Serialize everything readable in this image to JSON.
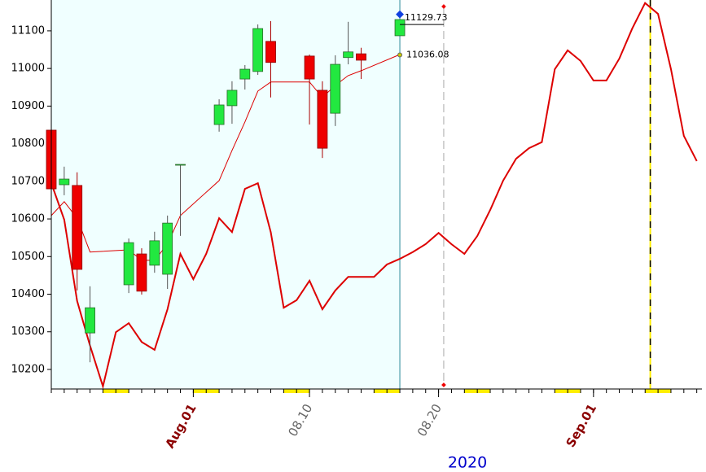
{
  "chart_data": {
    "type": "candlestick",
    "xlim": [
      -11,
      39.4
    ],
    "ylim": [
      10148,
      11182
    ],
    "yticks": [
      {
        "value": 10200,
        "label": "10200"
      },
      {
        "value": 10300,
        "label": "10300"
      },
      {
        "value": 10400,
        "label": "10400"
      },
      {
        "value": 10500,
        "label": "10500"
      },
      {
        "value": 10600,
        "label": "10600"
      },
      {
        "value": 10700,
        "label": "10700"
      },
      {
        "value": 10800,
        "label": "10800"
      },
      {
        "value": 10900,
        "label": "10900"
      },
      {
        "value": 11000,
        "label": "11000"
      },
      {
        "value": 11100,
        "label": "11100"
      }
    ],
    "xticks": [
      {
        "value": 0,
        "label": "Aug.01",
        "color": "#8b0000"
      },
      {
        "value": 9,
        "label": "08.10",
        "color": "#666666"
      },
      {
        "value": 19,
        "label": "08.20",
        "color": "#666666"
      },
      {
        "value": 31,
        "label": "Sep.01",
        "color": "#8b0000"
      }
    ],
    "xlabel": "2020",
    "up_color": "#22e840",
    "down_color": "#ee0000",
    "candles": {
      "x": [
        -11,
        -10,
        -9,
        -8,
        -5,
        -4,
        -3,
        -2,
        -1,
        2,
        3,
        4,
        5,
        6,
        9,
        10,
        11,
        12,
        13,
        16
      ],
      "open": [
        10836,
        10691,
        10689,
        10297,
        10425,
        10507,
        10477,
        10453,
        10745,
        10851,
        10901,
        10972,
        10992,
        11072,
        11033,
        10942,
        10881,
        11029,
        11039,
        11087
      ],
      "high": [
        10847,
        10739,
        10724,
        10421,
        10548,
        10522,
        10566,
        10609,
        10745,
        10918,
        10966,
        11009,
        11117,
        11126,
        11037,
        10966,
        11035,
        11124,
        11055,
        11130
      ],
      "low": [
        10652,
        10663,
        10410,
        10219,
        10403,
        10399,
        10457,
        10414,
        10555,
        10832,
        10853,
        10944,
        10983,
        10923,
        10851,
        10762,
        10847,
        11011,
        10972,
        11087
      ],
      "close": [
        10680,
        10706,
        10466,
        10364,
        10537,
        10408,
        10542,
        10589,
        10745,
        10903,
        10942,
        10998,
        11106,
        11016,
        10972,
        10788,
        11011,
        11044,
        11022,
        11130
      ]
    },
    "series": [
      {
        "color": "#dd0000",
        "width": 1,
        "x": [
          -11,
          -10,
          -9,
          -8,
          -5,
          -4,
          -3,
          -2,
          -1,
          2,
          3,
          4,
          5,
          6,
          9,
          10,
          11,
          12,
          13,
          16
        ],
        "values": [
          10609,
          10646,
          10602,
          10512,
          10518,
          10490,
          10490,
          10533,
          10609,
          10702,
          10782,
          10858,
          10940,
          10964,
          10964,
          10923,
          10955,
          10981,
          10994,
          11037
        ]
      },
      {
        "color": "#dd0000",
        "width": 2,
        "x": [
          -11,
          -10,
          -9,
          -8,
          -7,
          -6,
          -5,
          -4,
          -3,
          -2,
          -1,
          0,
          1,
          2,
          3,
          4,
          5,
          6,
          7,
          8,
          9,
          10,
          11,
          12,
          13,
          14,
          15,
          16,
          17,
          18,
          19,
          20,
          21,
          22,
          23,
          24,
          25,
          26,
          27,
          28,
          29,
          30,
          31,
          32,
          33,
          34,
          35,
          36,
          37,
          38,
          39
        ],
        "values": [
          10695,
          10598,
          10382,
          10263,
          10155,
          10299,
          10323,
          10273,
          10252,
          10360,
          10507,
          10440,
          10507,
          10602,
          10565,
          10680,
          10695,
          10565,
          10364,
          10384,
          10436,
          10360,
          10410,
          10446,
          10446,
          10446,
          10479,
          10494,
          10512,
          10533,
          10563,
          10533,
          10507,
          10555,
          10624,
          10702,
          10760,
          10788,
          10804,
          10998,
          11048,
          11020,
          10968,
          10968,
          11026,
          11106,
          11174,
          11145,
          10998,
          10821,
          10754
        ]
      }
    ],
    "annotations": [
      {
        "text": "11129.73",
        "value": 11129.73
      },
      {
        "text": "11036.08",
        "value": 11036.08
      }
    ],
    "vlines": [
      {
        "x": 19.4,
        "color": "#aaaaaa"
      },
      {
        "x": 35.4,
        "color": "#000000"
      }
    ]
  }
}
